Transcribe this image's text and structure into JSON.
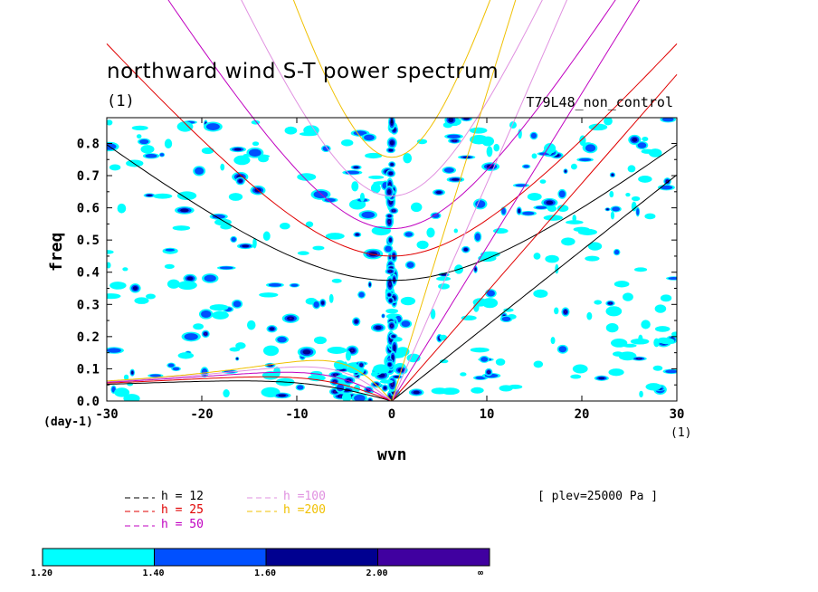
{
  "figure": {
    "title": "northward wind S-T power spectrum",
    "subtitle_left": "(1)",
    "subtitle_right": "T79L48_non_control",
    "plev_note": "[ plev=25000 Pa ]"
  },
  "chart_data": {
    "type": "contour",
    "xlabel": "wvn",
    "ylabel": "freq",
    "x_unit": "(1)",
    "y_unit": "(day-1)",
    "xlim": [
      -30,
      30
    ],
    "ylim": [
      0.0,
      0.88
    ],
    "x_ticks": [
      "-30",
      "-20",
      "-10",
      "0",
      "10",
      "20",
      "30"
    ],
    "y_ticks": [
      "0.0",
      "0.1",
      "0.2",
      "0.3",
      "0.4",
      "0.5",
      "0.6",
      "0.7",
      "0.8"
    ],
    "dispersion_curves": [
      {
        "label": "h = 12",
        "h": 12,
        "color": "#000000"
      },
      {
        "label": "h = 25",
        "h": 25,
        "color": "#e00000"
      },
      {
        "label": "h = 50",
        "h": 50,
        "color": "#c000c0"
      },
      {
        "label": "h =100",
        "h": 100,
        "color": "#e090e0"
      },
      {
        "label": "h =200",
        "h": 200,
        "color": "#f0c000"
      }
    ],
    "colorbar": {
      "levels": [
        "1.20",
        "1.40",
        "1.60",
        "2.00",
        "∞"
      ],
      "colors": [
        "#00ffff",
        "#0050ff",
        "#000090",
        "#4000a0"
      ]
    }
  }
}
